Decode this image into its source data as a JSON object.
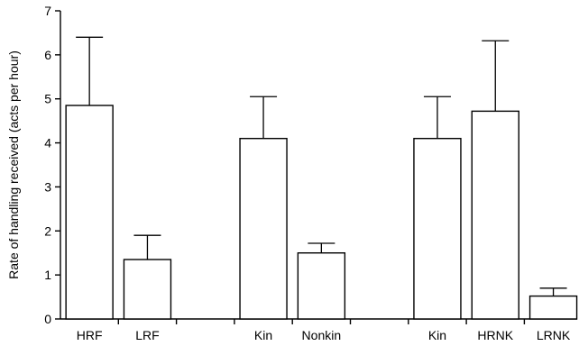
{
  "chart_data": {
    "type": "bar",
    "title": "",
    "xlabel": "",
    "ylabel": "Rate of handling received (acts per hour)",
    "ylim": [
      0,
      7
    ],
    "yticks": [
      0,
      1,
      2,
      3,
      4,
      5,
      6,
      7
    ],
    "grid": false,
    "bar_fill": "#ffffff",
    "bar_stroke": "#000000",
    "groups": [
      {
        "bars": [
          {
            "label": "HRF",
            "value": 4.85,
            "error": 1.55
          },
          {
            "label": "LRF",
            "value": 1.35,
            "error": 0.55
          }
        ]
      },
      {
        "bars": [
          {
            "label": "Kin",
            "value": 4.1,
            "error": 0.95
          },
          {
            "label": "Nonkin",
            "value": 1.5,
            "error": 0.22
          }
        ]
      },
      {
        "bars": [
          {
            "label": "Kin",
            "value": 4.1,
            "error": 0.95
          },
          {
            "label": "HRNK",
            "value": 4.72,
            "error": 1.6
          },
          {
            "label": "LRNK",
            "value": 0.52,
            "error": 0.18
          }
        ]
      }
    ]
  }
}
